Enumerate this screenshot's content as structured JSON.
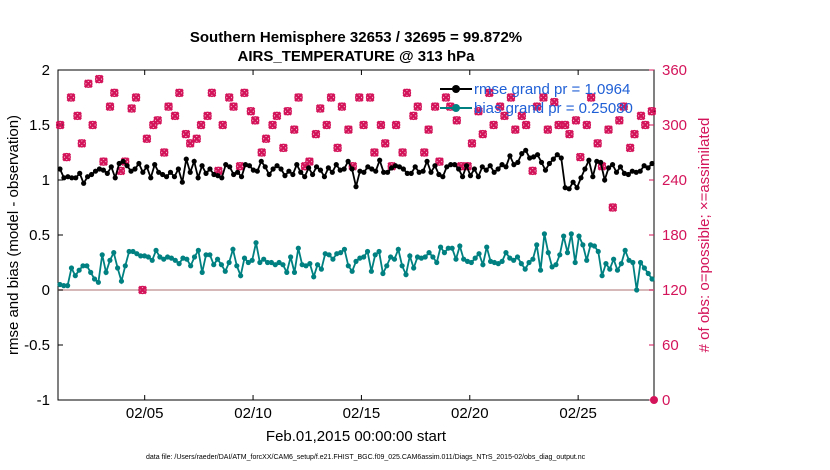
{
  "chart_data": {
    "type": "line",
    "title_line1": "Southern Hemisphere 32653 / 32695 = 99.872%",
    "title_line2": "AIRS_TEMPERATURE @ 313 hPa",
    "xlabel": "Feb.01,2015 00:00:00 start",
    "ylabel": "rmse and bias (model - observation)",
    "y2label": "# of obs: o=possible; ×=assimilated",
    "footnote": "data file: /Users/raeder/DAI/ATM_forcXX/CAM6_setup/f.e21.FHIST_BGC.f09_025.CAM6assim.011/Diags_NTrS_2015-02/obs_diag_output.nc",
    "xlim": [
      1,
      28.5
    ],
    "ylim": [
      -1,
      2
    ],
    "y2lim": [
      0,
      360
    ],
    "x_tick_labels": [
      "02/05",
      "02/10",
      "02/15",
      "02/20",
      "02/25"
    ],
    "x_tick_days": [
      5,
      10,
      15,
      20,
      25
    ],
    "y_tick_labels": [
      "-1",
      "-0.5",
      "0",
      "0.5",
      "1",
      "1.5",
      "2"
    ],
    "y_tick_values": [
      -1,
      -0.5,
      0,
      0.5,
      1,
      1.5,
      2
    ],
    "y2_tick_labels": [
      "0",
      "60",
      "120",
      "180",
      "240",
      "300",
      "360"
    ],
    "y2_tick_values": [
      0,
      60,
      120,
      180,
      240,
      300,
      360
    ],
    "legend_position": "top-right",
    "colors": {
      "rmse": "#000000",
      "bias": "#008080",
      "obs": "#d4145a",
      "zero_line": "#c9a0a0"
    },
    "series": [
      {
        "name": "rmse grand pr = 1.0964",
        "values": [
          1.1,
          1.02,
          1.03,
          1.02,
          1.02,
          1.06,
          0.97,
          1.03,
          1.05,
          1.08,
          1.1,
          1.09,
          1.06,
          1.12,
          1.02,
          1.15,
          1.17,
          1.13,
          1.08,
          1.1,
          1.15,
          1.07,
          1.12,
          1.02,
          1.14,
          1.07,
          1.05,
          1.03,
          1.07,
          1.03,
          1.1,
          0.98,
          1.19,
          1.07,
          1.17,
          1.02,
          1.13,
          1.06,
          1.1,
          1.05,
          1.04,
          1.02,
          1.14,
          1.12,
          1.05,
          1.07,
          1.03,
          1.14,
          1.13,
          1.09,
          1.08,
          1.17,
          1.12,
          1.05,
          1.1,
          1.13,
          1.1,
          1.04,
          1.08,
          1.05,
          1.14,
          1.07,
          1.03,
          1.11,
          1.05,
          1.12,
          1.09,
          1.03,
          1.11,
          1.07,
          1.14,
          1.09,
          1.1,
          1.17,
          1.1,
          0.94,
          1.08,
          1.07,
          1.12,
          1.1,
          1.08,
          1.18,
          1.07,
          1.07,
          1.11,
          1.13,
          1.12,
          1.1,
          1.06,
          1.06,
          1.12,
          1.07,
          1.08,
          1.17,
          1.07,
          1.13,
          1.05,
          1.03,
          1.12,
          1.14,
          1.14,
          1.1,
          1.03,
          1.13,
          1.04,
          1.1,
          1.03,
          1.12,
          1.09,
          1.13,
          1.07,
          1.1,
          1.14,
          1.12,
          1.22,
          1.14,
          1.16,
          1.24,
          1.27,
          1.2,
          1.21,
          1.23,
          1.16,
          1.09,
          1.15,
          1.19,
          1.23,
          1.2,
          0.93,
          0.92,
          0.98,
          0.93,
          1.02,
          1.1,
          1.18,
          1.03,
          1.17,
          1.16,
          1.0,
          1.11,
          1.14,
          1.07,
          1.12,
          1.06,
          1.05,
          1.08,
          1.07,
          1.08,
          1.13,
          1.11,
          1.15
        ]
      },
      {
        "name": "bias grand pr = 0.25080",
        "values": [
          0.05,
          0.04,
          0.04,
          0.2,
          0.13,
          0.18,
          0.22,
          0.22,
          0.16,
          0.1,
          0.07,
          0.32,
          0.16,
          0.27,
          0.34,
          0.2,
          0.08,
          0.22,
          0.35,
          0.35,
          0.33,
          0.31,
          0.31,
          0.3,
          0.27,
          0.36,
          0.3,
          0.28,
          0.3,
          0.29,
          0.27,
          0.24,
          0.29,
          0.28,
          0.22,
          0.3,
          0.36,
          0.16,
          0.32,
          0.32,
          0.23,
          0.28,
          0.23,
          0.17,
          0.25,
          0.37,
          0.22,
          0.13,
          0.29,
          0.25,
          0.27,
          0.43,
          0.25,
          0.28,
          0.25,
          0.25,
          0.23,
          0.25,
          0.23,
          0.16,
          0.3,
          0.16,
          0.38,
          0.23,
          0.22,
          0.24,
          0.12,
          0.23,
          0.19,
          0.33,
          0.32,
          0.28,
          0.33,
          0.34,
          0.37,
          0.22,
          0.17,
          0.26,
          0.29,
          0.3,
          0.35,
          0.17,
          0.32,
          0.35,
          0.15,
          0.22,
          0.3,
          0.28,
          0.37,
          0.22,
          0.14,
          0.31,
          0.2,
          0.3,
          0.29,
          0.3,
          0.34,
          0.3,
          0.25,
          0.39,
          0.34,
          0.38,
          0.38,
          0.28,
          0.4,
          0.28,
          0.26,
          0.25,
          0.29,
          0.33,
          0.23,
          0.39,
          0.26,
          0.25,
          0.24,
          0.26,
          0.34,
          0.29,
          0.27,
          0.3,
          0.24,
          0.19,
          0.25,
          0.28,
          0.41,
          0.18,
          0.51,
          0.34,
          0.21,
          0.23,
          0.32,
          0.49,
          0.34,
          0.51,
          0.25,
          0.49,
          0.41,
          0.27,
          0.41,
          0.4,
          0.35,
          0.13,
          0.24,
          0.19,
          0.28,
          0.18,
          0.24,
          0.36,
          0.27,
          0.25,
          0.0,
          0.25,
          0.2,
          0.15,
          0.1
        ]
      }
    ],
    "obs_possible": {
      "x": [
        1.1,
        1.4,
        1.6,
        1.9,
        2.1,
        2.4,
        2.6,
        2.9,
        3.1,
        3.4,
        3.6,
        3.9,
        4.1,
        4.4,
        4.6,
        4.9,
        5.1,
        5.4,
        5.6,
        5.9,
        6.1,
        6.4,
        6.6,
        6.9,
        7.1,
        7.4,
        7.6,
        7.9,
        8.1,
        8.4,
        8.6,
        8.9,
        9.1,
        9.4,
        9.6,
        9.9,
        10.1,
        10.4,
        10.6,
        10.9,
        11.1,
        11.4,
        11.6,
        11.9,
        12.1,
        12.4,
        12.6,
        12.9,
        13.1,
        13.4,
        13.6,
        13.9,
        14.1,
        14.4,
        14.6,
        14.9,
        15.1,
        15.4,
        15.6,
        15.9,
        16.1,
        16.4,
        16.6,
        16.9,
        17.1,
        17.4,
        17.6,
        17.9,
        18.1,
        18.4,
        18.6,
        18.9,
        19.1,
        19.4,
        19.6,
        19.9,
        20.1,
        20.4,
        20.6,
        20.9,
        21.1,
        21.4,
        21.6,
        21.9,
        22.1,
        22.4,
        22.6,
        22.9,
        23.1,
        23.4,
        23.6,
        23.9,
        24.1,
        24.4,
        24.6,
        24.9,
        25.1,
        25.4,
        25.6,
        25.9,
        26.1,
        26.4,
        26.6,
        26.9,
        27.1,
        27.4,
        27.6,
        27.9,
        28.1,
        28.4
      ],
      "y": [
        300,
        265,
        330,
        310,
        280,
        345,
        300,
        350,
        260,
        320,
        335,
        250,
        260,
        318,
        330,
        120,
        285,
        300,
        305,
        270,
        320,
        310,
        335,
        290,
        280,
        285,
        300,
        310,
        335,
        250,
        300,
        330,
        320,
        255,
        335,
        315,
        305,
        270,
        285,
        300,
        310,
        275,
        315,
        295,
        330,
        255,
        260,
        290,
        318,
        300,
        330,
        275,
        320,
        295,
        255,
        330,
        300,
        330,
        270,
        300,
        280,
        255,
        300,
        270,
        335,
        310,
        320,
        270,
        295,
        320,
        260,
        330,
        320,
        305,
        255,
        255,
        280,
        315,
        290,
        335,
        300,
        320,
        310,
        330,
        295,
        310,
        300,
        250,
        320,
        330,
        295,
        325,
        300,
        300,
        290,
        305,
        265,
        300,
        330,
        280,
        255,
        295,
        210,
        305,
        320,
        275,
        290,
        310,
        300,
        315
      ]
    },
    "obs_assimilated": {
      "x": [
        1.1,
        1.4,
        1.6,
        1.9,
        2.1,
        2.4,
        2.6,
        2.9,
        3.1,
        3.4,
        3.6,
        3.9,
        4.1,
        4.4,
        4.6,
        4.9,
        5.1,
        5.4,
        5.6,
        5.9,
        6.1,
        6.4,
        6.6,
        6.9,
        7.1,
        7.4,
        7.6,
        7.9,
        8.1,
        8.4,
        8.6,
        8.9,
        9.1,
        9.4,
        9.6,
        9.9,
        10.1,
        10.4,
        10.6,
        10.9,
        11.1,
        11.4,
        11.6,
        11.9,
        12.1,
        12.4,
        12.6,
        12.9,
        13.1,
        13.4,
        13.6,
        13.9,
        14.1,
        14.4,
        14.6,
        14.9,
        15.1,
        15.4,
        15.6,
        15.9,
        16.1,
        16.4,
        16.6,
        16.9,
        17.1,
        17.4,
        17.6,
        17.9,
        18.1,
        18.4,
        18.6,
        18.9,
        19.1,
        19.4,
        19.6,
        19.9,
        20.1,
        20.4,
        20.6,
        20.9,
        21.1,
        21.4,
        21.6,
        21.9,
        22.1,
        22.4,
        22.6,
        22.9,
        23.1,
        23.4,
        23.6,
        23.9,
        24.1,
        24.4,
        24.6,
        24.9,
        25.1,
        25.4,
        25.6,
        25.9,
        26.1,
        26.4,
        26.6,
        26.9,
        27.1,
        27.4,
        27.6,
        27.9,
        28.1,
        28.4
      ],
      "y": [
        300,
        265,
        330,
        310,
        280,
        345,
        300,
        350,
        260,
        320,
        335,
        250,
        260,
        318,
        330,
        120,
        285,
        300,
        305,
        270,
        320,
        310,
        335,
        290,
        280,
        285,
        300,
        310,
        335,
        250,
        300,
        330,
        320,
        255,
        335,
        315,
        305,
        270,
        285,
        300,
        310,
        275,
        315,
        295,
        330,
        255,
        260,
        290,
        318,
        300,
        330,
        275,
        320,
        295,
        255,
        330,
        300,
        330,
        270,
        300,
        280,
        255,
        300,
        270,
        335,
        310,
        320,
        270,
        295,
        320,
        260,
        330,
        320,
        305,
        255,
        255,
        280,
        315,
        290,
        335,
        300,
        320,
        310,
        330,
        295,
        310,
        300,
        250,
        320,
        330,
        295,
        325,
        300,
        300,
        290,
        305,
        265,
        300,
        330,
        280,
        255,
        295,
        210,
        305,
        320,
        275,
        290,
        310,
        300,
        315
      ]
    }
  }
}
